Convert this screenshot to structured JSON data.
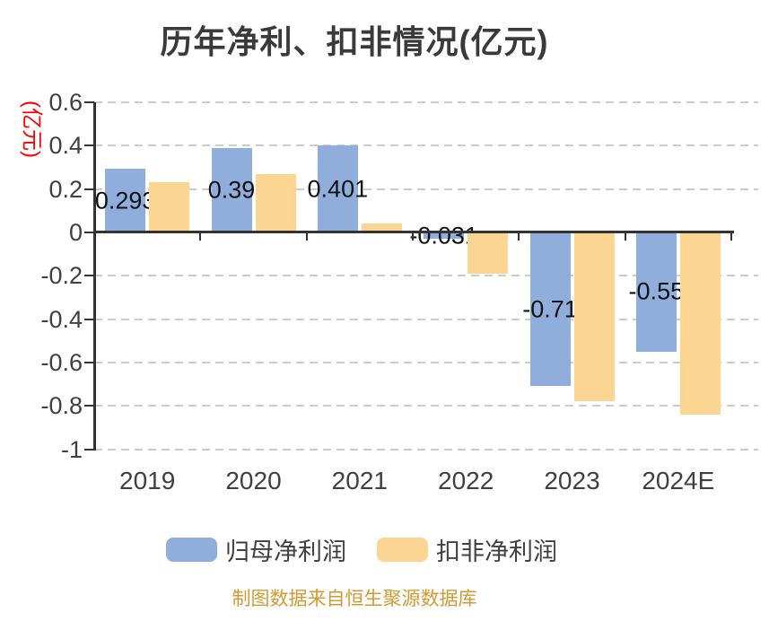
{
  "chart_data": {
    "type": "bar",
    "title": "历年净利、扣非情况(亿元)",
    "y_axis_name": "(亿元)",
    "categories": [
      "2019",
      "2020",
      "2021",
      "2022",
      "2023",
      "2024E"
    ],
    "series": [
      {
        "name": "归母净利润",
        "color": "#8FAEDC",
        "values": [
          0.293,
          0.39,
          0.401,
          -0.031,
          -0.71,
          -0.55
        ],
        "labels": [
          "0.293",
          "0.39",
          "0.401",
          "-0.031",
          "-0.71",
          "-0.55"
        ],
        "show_labels": true
      },
      {
        "name": "扣非净利润",
        "color": "#FCD592",
        "values": [
          0.23,
          0.27,
          0.04,
          -0.19,
          -0.78,
          -0.84
        ],
        "labels": [],
        "show_labels": false
      }
    ],
    "ylim": [
      -1,
      0.6
    ],
    "y_ticks": [
      0.6,
      0.4,
      0.2,
      0,
      -0.2,
      -0.4,
      -0.6,
      -0.8,
      -1
    ],
    "y_tick_labels": [
      "0.6",
      "0.4",
      "0.2",
      "0",
      "-0.2",
      "-0.4",
      "-0.6",
      "-0.8",
      "-1"
    ],
    "grid": true,
    "legend_position": "bottom"
  },
  "footer": {
    "text": "制图数据来自恒生聚源数据库"
  },
  "colors": {
    "axis": "#333333",
    "grid": "#cccccc",
    "title": "#3A3A3A",
    "tick_label": "#404040",
    "value_label": "#111111",
    "y_axis_name": "#FF0000",
    "footer": "#D39A31",
    "background": "#FFFFFF"
  }
}
